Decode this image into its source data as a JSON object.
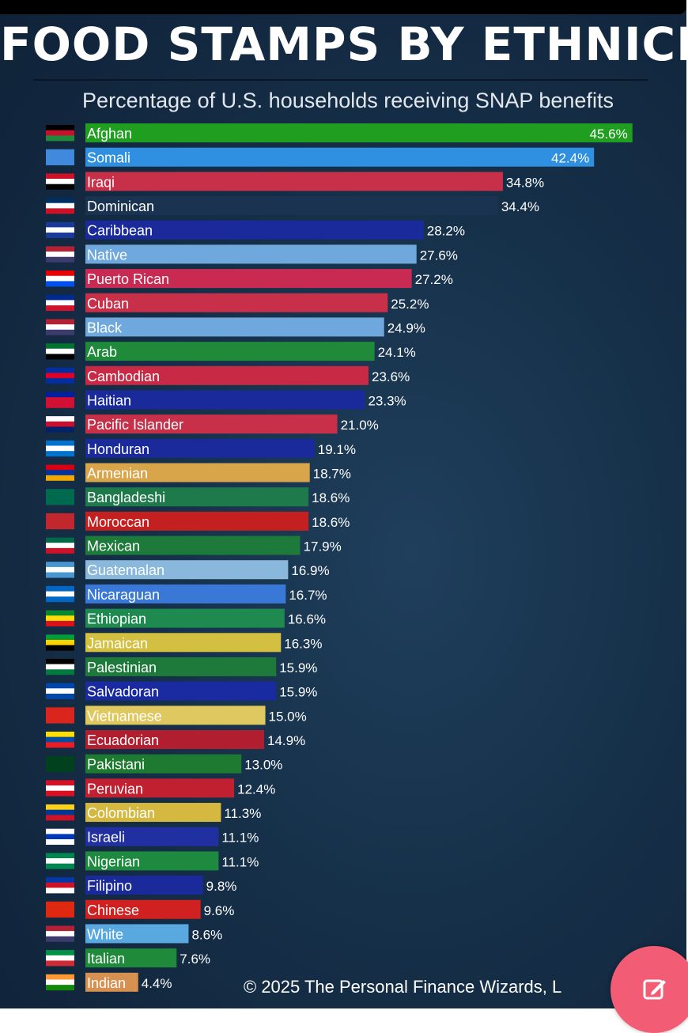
{
  "title": "FOOD STAMPS BY ETHNICITY",
  "subtitle": "Percentage of U.S. households receiving SNAP benefits",
  "footer": "© 2025 The Personal Finance Wizards, L",
  "edit_button_icon": "edit-pencil-icon",
  "chart_data": {
    "type": "bar",
    "orientation": "horizontal",
    "title": "FOOD STAMPS BY ETHNICITY",
    "subtitle": "Percentage of U.S. households receiving SNAP benefits",
    "value_format": "percent",
    "xlim": [
      0,
      50
    ],
    "grid": false,
    "legend": "none",
    "categories": [
      "Afghan",
      "Somali",
      "Iraqi",
      "Dominican",
      "Caribbean",
      "Native",
      "Puerto Rican",
      "Cuban",
      "Black",
      "Arab",
      "Cambodian",
      "Haitian",
      "Pacific Islander",
      "Honduran",
      "Armenian",
      "Bangladeshi",
      "Moroccan",
      "Mexican",
      "Guatemalan",
      "Nicaraguan",
      "Ethiopian",
      "Jamaican",
      "Palestinian",
      "Salvadoran",
      "Vietnamese",
      "Ecuadorian",
      "Pakistani",
      "Peruvian",
      "Colombian",
      "Israeli",
      "Nigerian",
      "Filipino",
      "Chinese",
      "White",
      "Italian",
      "Indian"
    ],
    "values": [
      45.6,
      42.4,
      34.8,
      34.4,
      28.2,
      27.6,
      27.2,
      25.2,
      24.9,
      24.1,
      23.6,
      23.3,
      21.0,
      19.1,
      18.7,
      18.6,
      18.6,
      17.9,
      16.9,
      16.7,
      16.6,
      16.3,
      15.9,
      15.9,
      15.0,
      14.9,
      13.0,
      12.4,
      11.3,
      11.1,
      11.1,
      9.8,
      9.6,
      8.6,
      7.6,
      4.4
    ],
    "value_labels": [
      "45.6%",
      "42.4%",
      "34.8%",
      "34.4%",
      "28.2%",
      "27.6%",
      "27.2%",
      "25.2%",
      "24.9%",
      "24.1%",
      "23.6%",
      "23.3%",
      "21.0%",
      "19.1%",
      "18.7%",
      "18.6%",
      "18.6%",
      "17.9%",
      "16.9%",
      "16.7%",
      "16.6%",
      "16.3%",
      "15.9%",
      "15.9%",
      "15.0%",
      "14.9%",
      "13.0%",
      "12.4%",
      "11.3%",
      "11.1%",
      "11.1%",
      "9.8%",
      "9.6%",
      "8.6%",
      "7.6%",
      "4.4%"
    ],
    "bar_colors": [
      "#1f9e1f",
      "#2f8fe0",
      "#c8304a",
      "#1a3350",
      "#1a2a9a",
      "#6fa8dc",
      "#c82a52",
      "#c8304a",
      "#6fa8dc",
      "#1e8a3a",
      "#c82a45",
      "#1a2a9a",
      "#c8304a",
      "#1a2a9a",
      "#d9a54a",
      "#1e7a4a",
      "#c42020",
      "#1e7a3a",
      "#8ab8dd",
      "#3a78d8",
      "#1e8a50",
      "#d4c040",
      "#1e7a3a",
      "#1a2aa0",
      "#e0c860",
      "#b01e30",
      "#1e7a30",
      "#c02030",
      "#d4b840",
      "#2030a0",
      "#1e8a40",
      "#1a2a9a",
      "#d02020",
      "#5aa8e0",
      "#1e8a3a",
      "#d89050"
    ],
    "flag_icons": [
      "afghanistan-flag-icon",
      "somalia-flag-icon",
      "iraq-flag-icon",
      "dominican-republic-flag-icon",
      "caribbean-flag-icon",
      "usa-flag-icon",
      "puerto-rico-flag-icon",
      "cuba-flag-icon",
      "usa-flag-icon",
      "uae-flag-icon",
      "cambodia-flag-icon",
      "haiti-flag-icon",
      "hawaii-flag-icon",
      "honduras-flag-icon",
      "armenia-flag-icon",
      "bangladesh-flag-icon",
      "morocco-flag-icon",
      "mexico-flag-icon",
      "guatemala-flag-icon",
      "nicaragua-flag-icon",
      "ethiopia-flag-icon",
      "jamaica-flag-icon",
      "palestine-flag-icon",
      "el-salvador-flag-icon",
      "vietnam-flag-icon",
      "ecuador-flag-icon",
      "pakistan-flag-icon",
      "peru-flag-icon",
      "colombia-flag-icon",
      "israel-flag-icon",
      "nigeria-flag-icon",
      "philippines-flag-icon",
      "china-flag-icon",
      "usa-flag-icon",
      "italy-flag-icon",
      "india-flag-icon"
    ],
    "flag_colors": [
      [
        "#000000",
        "#c8102e",
        "#1f8a3a"
      ],
      [
        "#4189dd",
        "#4189dd",
        "#4189dd"
      ],
      [
        "#ce1126",
        "#ffffff",
        "#000000"
      ],
      [
        "#002d62",
        "#ffffff",
        "#ce1126"
      ],
      [
        "#1a3a9a",
        "#ffffff",
        "#1a3a9a"
      ],
      [
        "#b22234",
        "#ffffff",
        "#3c3b6e"
      ],
      [
        "#ed0000",
        "#ffffff",
        "#0050f0"
      ],
      [
        "#002a8f",
        "#ffffff",
        "#cf142b"
      ],
      [
        "#b22234",
        "#ffffff",
        "#3c3b6e"
      ],
      [
        "#00732f",
        "#ffffff",
        "#000000"
      ],
      [
        "#032ea1",
        "#e00025",
        "#032ea1"
      ],
      [
        "#00209f",
        "#d21034",
        "#d21034"
      ],
      [
        "#ffffff",
        "#c8102e",
        "#012169"
      ],
      [
        "#0073cf",
        "#ffffff",
        "#0073cf"
      ],
      [
        "#d90012",
        "#0033a0",
        "#f2a800"
      ],
      [
        "#006a4e",
        "#006a4e",
        "#006a4e"
      ],
      [
        "#c1272d",
        "#c1272d",
        "#c1272d"
      ],
      [
        "#006847",
        "#ffffff",
        "#ce1126"
      ],
      [
        "#4997d0",
        "#ffffff",
        "#4997d0"
      ],
      [
        "#0067c6",
        "#ffffff",
        "#0067c6"
      ],
      [
        "#078930",
        "#fcdd09",
        "#da121a"
      ],
      [
        "#009b3a",
        "#fed100",
        "#000000"
      ],
      [
        "#000000",
        "#ffffff",
        "#007a3d"
      ],
      [
        "#0047ab",
        "#ffffff",
        "#0047ab"
      ],
      [
        "#da251d",
        "#da251d",
        "#da251d"
      ],
      [
        "#ffdd00",
        "#034ea2",
        "#ed1c24"
      ],
      [
        "#01411c",
        "#01411c",
        "#01411c"
      ],
      [
        "#d91023",
        "#ffffff",
        "#d91023"
      ],
      [
        "#fcd116",
        "#003893",
        "#ce1126"
      ],
      [
        "#ffffff",
        "#0038b8",
        "#ffffff"
      ],
      [
        "#008751",
        "#ffffff",
        "#008751"
      ],
      [
        "#0038a8",
        "#ce1126",
        "#ffffff"
      ],
      [
        "#de2910",
        "#de2910",
        "#de2910"
      ],
      [
        "#b22234",
        "#ffffff",
        "#3c3b6e"
      ],
      [
        "#009246",
        "#ffffff",
        "#ce2b37"
      ],
      [
        "#ff9933",
        "#ffffff",
        "#138808"
      ]
    ]
  }
}
